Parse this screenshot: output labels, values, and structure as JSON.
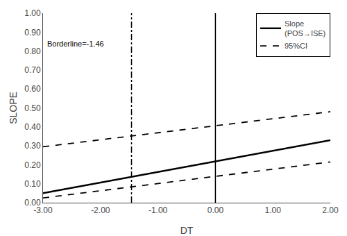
{
  "chart_data": {
    "type": "line",
    "x": [
      -3.0,
      2.0
    ],
    "series": [
      {
        "name": "Slope\n(POS→ISE)",
        "values": [
          0.05,
          0.33
        ],
        "line_style": "solid"
      },
      {
        "name": "95%CI",
        "values": [
          0.295,
          0.48
        ],
        "line_style": "dashed"
      },
      {
        "values": [
          0.025,
          0.215
        ],
        "line_style": "dashed"
      }
    ],
    "vlines": [
      {
        "x": -1.46,
        "line_style": "dashdot"
      },
      {
        "x": 0.0,
        "line_style": "solid"
      }
    ],
    "annotations": [
      {
        "text": "Borderline=-1.46"
      }
    ],
    "color": "#000000",
    "xlabel": "DT",
    "ylabel": "SLOPE",
    "xlim": [
      -3.0,
      2.0
    ],
    "ylim": [
      0.0,
      1.0
    ],
    "xticks": [
      {
        "value": -3.0,
        "label": "-3.00"
      },
      {
        "value": -2.0,
        "label": "-2.00"
      },
      {
        "value": -1.0,
        "label": "-1.00"
      },
      {
        "value": 0.0,
        "label": "0.00"
      },
      {
        "value": 1.0,
        "label": "1.00"
      },
      {
        "value": 2.0,
        "label": "2.00"
      }
    ],
    "yticks": [
      {
        "value": 0.0,
        "label": "0.00"
      },
      {
        "value": 0.1,
        "label": "0.10"
      },
      {
        "value": 0.2,
        "label": "0.20"
      },
      {
        "value": 0.3,
        "label": "0.30"
      },
      {
        "value": 0.4,
        "label": "0.40"
      },
      {
        "value": 0.5,
        "label": "0.50"
      },
      {
        "value": 0.6,
        "label": "0.60"
      },
      {
        "value": 0.7,
        "label": "0.70"
      },
      {
        "value": 0.8,
        "label": "0.80"
      },
      {
        "value": 0.9,
        "label": "0.90"
      },
      {
        "value": 1.0,
        "label": "1.00"
      }
    ],
    "grid": false,
    "legend": "upper right"
  }
}
